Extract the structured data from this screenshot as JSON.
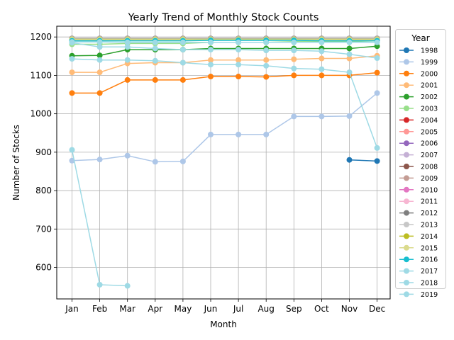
{
  "chart_data": {
    "type": "line",
    "title": "Yearly Trend of Monthly Stock Counts",
    "xlabel": "Month",
    "ylabel": "Number of Stocks",
    "categories": [
      "Jan",
      "Feb",
      "Mar",
      "Apr",
      "May",
      "Jun",
      "Jul",
      "Aug",
      "Sep",
      "Oct",
      "Nov",
      "Dec"
    ],
    "ylim": [
      518,
      1228
    ],
    "yticks": [
      600,
      700,
      800,
      900,
      1000,
      1100,
      1200
    ],
    "grid": true,
    "legend_title": "Year",
    "legend_position": "right",
    "series": [
      {
        "name": "1998",
        "color": "#1f77b4",
        "values": [
          null,
          null,
          null,
          null,
          null,
          null,
          null,
          null,
          null,
          null,
          880,
          877
        ]
      },
      {
        "name": "1999",
        "color": "#aec7e8",
        "values": [
          878,
          881,
          891,
          875,
          876,
          946,
          946,
          946,
          993,
          993,
          994,
          1054
        ]
      },
      {
        "name": "2000",
        "color": "#ff7f0e",
        "values": [
          1054,
          1054,
          1088,
          1088,
          1088,
          1097,
          1097,
          1096,
          1100,
          1100,
          1100,
          1107
        ]
      },
      {
        "name": "2001",
        "color": "#ffbb78",
        "values": [
          1108,
          1108,
          1131,
          1133,
          1133,
          1140,
          1140,
          1140,
          1142,
          1144,
          1144,
          1151
        ]
      },
      {
        "name": "2002",
        "color": "#2ca02c",
        "values": [
          1151,
          1152,
          1167,
          1167,
          1167,
          1170,
          1170,
          1170,
          1170,
          1170,
          1170,
          1176
        ]
      },
      {
        "name": "2003",
        "color": "#98df8a",
        "values": [
          1181,
          1181,
          1183,
          1183,
          1183,
          1186,
          1186,
          1186,
          1188,
          1188,
          1188,
          1190
        ]
      },
      {
        "name": "2004",
        "color": "#d62728",
        "values": [
          1194,
          1194,
          1194,
          1194,
          1194,
          1194,
          1194,
          1194,
          1194,
          1194,
          1193,
          1193
        ]
      },
      {
        "name": "2005",
        "color": "#ff9896",
        "values": [
          1193,
          1193,
          1193,
          1193,
          1193,
          1193,
          1193,
          1193,
          1193,
          1193,
          1193,
          1193
        ]
      },
      {
        "name": "2006",
        "color": "#9467bd",
        "values": [
          1195,
          1195,
          1195,
          1195,
          1195,
          1195,
          1195,
          1195,
          1195,
          1195,
          1195,
          1195
        ]
      },
      {
        "name": "2007",
        "color": "#c5b0d5",
        "values": [
          1195,
          1195,
          1195,
          1195,
          1195,
          1195,
          1195,
          1195,
          1195,
          1195,
          1195,
          1195
        ]
      },
      {
        "name": "2008",
        "color": "#8c564b",
        "values": [
          1196,
          1196,
          1196,
          1196,
          1196,
          1196,
          1196,
          1196,
          1196,
          1196,
          1196,
          1196
        ]
      },
      {
        "name": "2009",
        "color": "#c49c94",
        "values": [
          1196,
          1196,
          1196,
          1196,
          1196,
          1196,
          1196,
          1196,
          1196,
          1196,
          1196,
          1196
        ]
      },
      {
        "name": "2010",
        "color": "#e377c2",
        "values": [
          1196,
          1196,
          1196,
          1196,
          1196,
          1196,
          1196,
          1196,
          1196,
          1196,
          1196,
          1196
        ]
      },
      {
        "name": "2011",
        "color": "#f7b6d2",
        "values": [
          1196,
          1196,
          1196,
          1196,
          1196,
          1196,
          1196,
          1196,
          1196,
          1196,
          1196,
          1196
        ]
      },
      {
        "name": "2012",
        "color": "#7f7f7f",
        "values": [
          1196,
          1196,
          1196,
          1196,
          1196,
          1196,
          1196,
          1196,
          1196,
          1196,
          1196,
          1196
        ]
      },
      {
        "name": "2013",
        "color": "#c7c7c7",
        "values": [
          1195,
          1195,
          1195,
          1195,
          1195,
          1195,
          1195,
          1195,
          1195,
          1195,
          1195,
          1195
        ]
      },
      {
        "name": "2014",
        "color": "#bcbd22",
        "values": [
          1194,
          1194,
          1194,
          1194,
          1194,
          1194,
          1194,
          1194,
          1194,
          1194,
          1194,
          1194
        ]
      },
      {
        "name": "2015",
        "color": "#dbdb8d",
        "values": [
          1193,
          1193,
          1193,
          1193,
          1193,
          1193,
          1193,
          1193,
          1193,
          1193,
          1193,
          1193
        ]
      },
      {
        "name": "2016",
        "color": "#17becf",
        "values": [
          1190,
          1190,
          1190,
          1190,
          1190,
          1191,
          1191,
          1191,
          1191,
          1190,
          1190,
          1190
        ]
      },
      {
        "name": "2017",
        "color": "#9edae5",
        "values": [
          1187,
          1187,
          1186,
          1186,
          1186,
          1186,
          1186,
          1186,
          1186,
          1186,
          1186,
          1186
        ]
      },
      {
        "name": "2018",
        "color": "#9edae5",
        "values": [
          1185,
          1174,
          1174,
          1170,
          1167,
          1167,
          1167,
          1165,
          1165,
          1163,
          1155,
          1145
        ]
      },
      {
        "name": "2019",
        "color": "#9edae5",
        "values": [
          1143,
          1140,
          1140,
          1138,
          1133,
          1128,
          1128,
          1125,
          1118,
          1116,
          1108,
          911
        ]
      },
      {
        "name": "",
        "color": "#9edae5",
        "values": [
          906,
          555,
          552,
          null,
          null,
          null,
          null,
          null,
          null,
          null,
          null,
          null
        ]
      }
    ]
  }
}
